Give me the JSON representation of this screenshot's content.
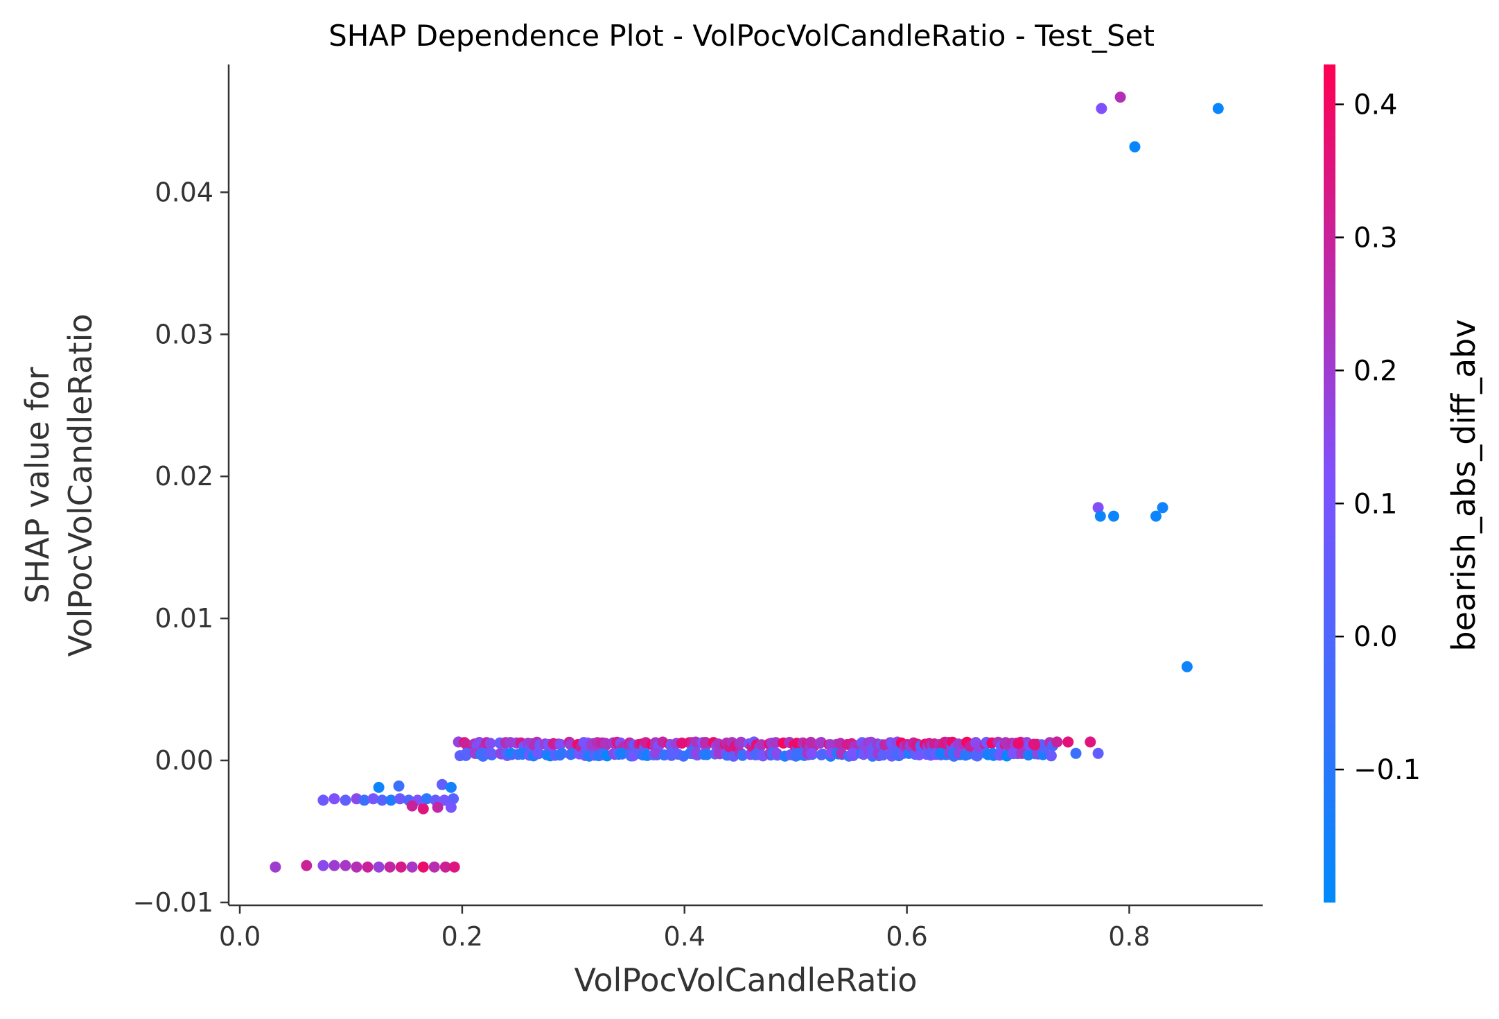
{
  "chart_data": {
    "type": "scatter",
    "title": "SHAP Dependence Plot - VolPocVolCandleRatio - Test_Set",
    "xlabel": "VolPocVolCandleRatio",
    "ylabel_line1": "SHAP value for",
    "ylabel_line2": "VolPocVolCandleRatio",
    "xlim": [
      -0.01,
      0.92
    ],
    "ylim": [
      -0.0102,
      0.049
    ],
    "xticks": [
      0.0,
      0.2,
      0.4,
      0.6,
      0.8
    ],
    "xtick_labels": [
      "0.0",
      "0.2",
      "0.4",
      "0.6",
      "0.8"
    ],
    "yticks": [
      -0.01,
      0.0,
      0.01,
      0.02,
      0.03,
      0.04
    ],
    "ytick_labels": [
      "−0.01",
      "0.00",
      "0.01",
      "0.02",
      "0.03",
      "0.04"
    ],
    "grid": false,
    "colorbar": {
      "label": "bearish_abs_diff_abv",
      "range": [
        -0.2,
        0.43
      ],
      "ticks": [
        -0.1,
        0.0,
        0.1,
        0.2,
        0.3,
        0.4
      ],
      "tick_labels": [
        "−0.1",
        "0.0",
        "0.1",
        "0.2",
        "0.3",
        "0.4"
      ],
      "low_color": "#008afb",
      "mid_color": "#7c52ff",
      "high_color": "#ff0052"
    },
    "series": [
      {
        "points": [
          {
            "x": 0.775,
            "y": 0.0459,
            "c": 0.12
          },
          {
            "x": 0.792,
            "y": 0.0467,
            "c": 0.25
          },
          {
            "x": 0.805,
            "y": 0.0432,
            "c": -0.18
          },
          {
            "x": 0.88,
            "y": 0.0459,
            "c": -0.18
          },
          {
            "x": 0.772,
            "y": 0.0178,
            "c": 0.13
          },
          {
            "x": 0.774,
            "y": 0.0172,
            "c": -0.17
          },
          {
            "x": 0.786,
            "y": 0.0172,
            "c": -0.17
          },
          {
            "x": 0.824,
            "y": 0.0172,
            "c": -0.17
          },
          {
            "x": 0.83,
            "y": 0.0178,
            "c": -0.16
          },
          {
            "x": 0.852,
            "y": 0.0066,
            "c": -0.17
          },
          {
            "x": 0.032,
            "y": -0.0075,
            "c": 0.2
          },
          {
            "x": 0.06,
            "y": -0.0074,
            "c": 0.3
          },
          {
            "x": 0.075,
            "y": -0.0074,
            "c": 0.15
          },
          {
            "x": 0.085,
            "y": -0.0074,
            "c": 0.2
          },
          {
            "x": 0.095,
            "y": -0.0074,
            "c": 0.22
          },
          {
            "x": 0.105,
            "y": -0.0075,
            "c": 0.25
          },
          {
            "x": 0.115,
            "y": -0.0075,
            "c": 0.3
          },
          {
            "x": 0.125,
            "y": -0.0075,
            "c": 0.18
          },
          {
            "x": 0.135,
            "y": -0.0075,
            "c": 0.28
          },
          {
            "x": 0.145,
            "y": -0.0075,
            "c": 0.33
          },
          {
            "x": 0.155,
            "y": -0.0075,
            "c": 0.22
          },
          {
            "x": 0.165,
            "y": -0.0075,
            "c": 0.38
          },
          {
            "x": 0.175,
            "y": -0.0075,
            "c": 0.26
          },
          {
            "x": 0.185,
            "y": -0.0075,
            "c": 0.31
          },
          {
            "x": 0.193,
            "y": -0.0075,
            "c": 0.35
          },
          {
            "x": 0.075,
            "y": -0.0028,
            "c": 0.08
          },
          {
            "x": 0.085,
            "y": -0.0027,
            "c": 0.12
          },
          {
            "x": 0.095,
            "y": -0.0028,
            "c": 0.05
          },
          {
            "x": 0.105,
            "y": -0.0027,
            "c": 0.15
          },
          {
            "x": 0.112,
            "y": -0.0028,
            "c": -0.05
          },
          {
            "x": 0.12,
            "y": -0.0027,
            "c": 0.1
          },
          {
            "x": 0.128,
            "y": -0.0028,
            "c": 0.02
          },
          {
            "x": 0.136,
            "y": -0.0028,
            "c": -0.12
          },
          {
            "x": 0.144,
            "y": -0.0027,
            "c": 0.07
          },
          {
            "x": 0.152,
            "y": -0.0028,
            "c": 0.0
          },
          {
            "x": 0.16,
            "y": -0.0028,
            "c": 0.12
          },
          {
            "x": 0.168,
            "y": -0.0027,
            "c": -0.08
          },
          {
            "x": 0.176,
            "y": -0.0028,
            "c": 0.06
          },
          {
            "x": 0.184,
            "y": -0.0028,
            "c": 0.1
          },
          {
            "x": 0.192,
            "y": -0.0027,
            "c": 0.03
          },
          {
            "x": 0.125,
            "y": -0.0019,
            "c": -0.17
          },
          {
            "x": 0.143,
            "y": -0.0018,
            "c": -0.05
          },
          {
            "x": 0.182,
            "y": -0.0017,
            "c": 0.05
          },
          {
            "x": 0.19,
            "y": -0.0019,
            "c": -0.15
          },
          {
            "x": 0.155,
            "y": -0.0032,
            "c": 0.3
          },
          {
            "x": 0.165,
            "y": -0.0034,
            "c": 0.35
          },
          {
            "x": 0.178,
            "y": -0.0033,
            "c": 0.28
          },
          {
            "x": 0.19,
            "y": -0.0033,
            "c": 0.1
          }
        ],
        "band_ranges": [
          {
            "x_from": 0.196,
            "x_to": 0.73,
            "y_top": 0.0012,
            "y_bottom": 0.0004
          }
        ],
        "band_tail_points": [
          {
            "x": 0.7,
            "y": 0.0012,
            "c": 0.38
          },
          {
            "x": 0.715,
            "y": 0.0011,
            "c": 0.35
          },
          {
            "x": 0.735,
            "y": 0.0013,
            "c": 0.3
          },
          {
            "x": 0.745,
            "y": 0.0013,
            "c": 0.36
          },
          {
            "x": 0.765,
            "y": 0.0013,
            "c": 0.35
          },
          {
            "x": 0.752,
            "y": 0.0005,
            "c": -0.05
          },
          {
            "x": 0.772,
            "y": 0.0005,
            "c": 0.05
          }
        ]
      }
    ]
  }
}
